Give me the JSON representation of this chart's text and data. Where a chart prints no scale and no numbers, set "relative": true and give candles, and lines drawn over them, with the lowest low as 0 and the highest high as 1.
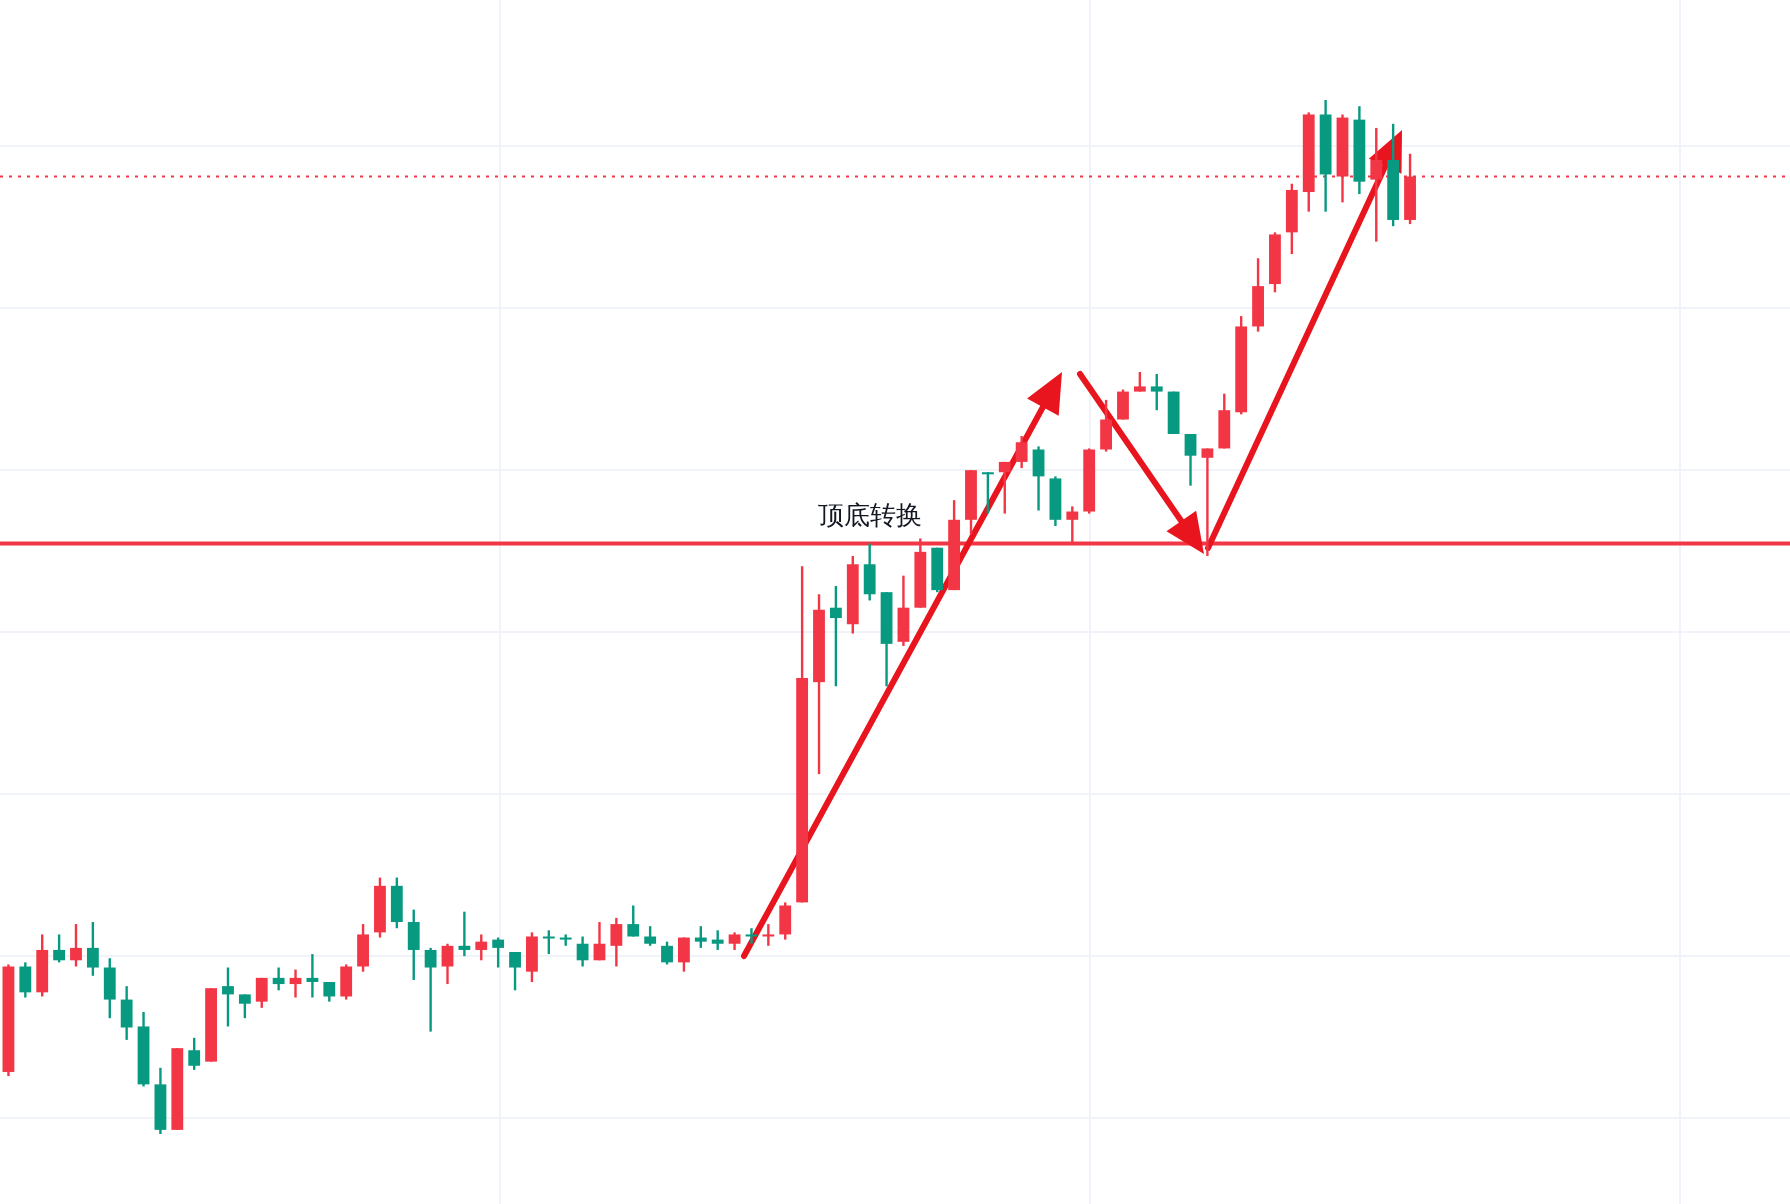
{
  "chart_data": {
    "type": "candlestick",
    "relative": true,
    "grid": true,
    "categories": [
      null,
      null,
      null,
      null,
      null,
      null,
      null,
      null,
      null,
      null,
      null,
      null,
      null,
      null,
      null,
      null,
      null,
      null,
      null,
      null,
      null,
      null,
      null,
      null,
      null,
      null,
      null,
      null,
      null,
      null,
      null,
      null,
      null,
      null,
      null,
      null,
      null,
      null,
      null,
      null,
      null,
      null,
      null,
      null,
      null,
      null,
      null,
      null,
      null,
      null,
      null,
      null,
      null,
      null,
      null,
      null,
      null,
      null,
      null,
      null,
      null,
      null,
      null,
      null,
      null,
      null,
      null,
      null,
      null,
      null,
      null,
      null,
      null,
      null,
      null,
      null,
      null,
      null,
      null,
      null,
      null,
      null,
      null,
      null
    ],
    "ohlc": [
      [
        0.06,
        0.164,
        0.056,
        0.162
      ],
      [
        0.162,
        0.166,
        0.132,
        0.137
      ],
      [
        0.137,
        0.193,
        0.133,
        0.178
      ],
      [
        0.178,
        0.193,
        0.166,
        0.168
      ],
      [
        0.168,
        0.203,
        0.162,
        0.18
      ],
      [
        0.18,
        0.205,
        0.153,
        0.161
      ],
      [
        0.161,
        0.17,
        0.112,
        0.13
      ],
      [
        0.13,
        0.143,
        0.091,
        0.103
      ],
      [
        0.104,
        0.118,
        0.046,
        0.048
      ],
      [
        0.048,
        0.064,
        0,
        0.004
      ],
      [
        0.004,
        0.083,
        0.004,
        0.083
      ],
      [
        0.081,
        0.093,
        0.062,
        0.066
      ],
      [
        0.07,
        0.141,
        0.07,
        0.141
      ],
      [
        0.143,
        0.161,
        0.104,
        0.135
      ],
      [
        0.135,
        0.135,
        0.112,
        0.126
      ],
      [
        0.128,
        0.151,
        0.122,
        0.151
      ],
      [
        0.151,
        0.161,
        0.139,
        0.145
      ],
      [
        0.145,
        0.159,
        0.132,
        0.151
      ],
      [
        0.151,
        0.174,
        0.132,
        0.147
      ],
      [
        0.147,
        0.147,
        0.128,
        0.133
      ],
      [
        0.133,
        0.164,
        0.13,
        0.162
      ],
      [
        0.162,
        0.203,
        0.157,
        0.193
      ],
      [
        0.195,
        0.248,
        0.19,
        0.24
      ],
      [
        0.24,
        0.248,
        0.199,
        0.205
      ],
      [
        0.205,
        0.217,
        0.149,
        0.178
      ],
      [
        0.178,
        0.18,
        0.099,
        0.161
      ],
      [
        0.162,
        0.184,
        0.145,
        0.182
      ],
      [
        0.182,
        0.215,
        0.172,
        0.178
      ],
      [
        0.178,
        0.193,
        0.168,
        0.186
      ],
      [
        0.188,
        0.19,
        0.161,
        0.18
      ],
      [
        0.176,
        0.176,
        0.139,
        0.161
      ],
      [
        0.157,
        0.195,
        0.147,
        0.191
      ],
      [
        0.191,
        0.197,
        0.174,
        0.19
      ],
      [
        0.19,
        0.193,
        0.182,
        0.188
      ],
      [
        0.184,
        0.191,
        0.162,
        0.168
      ],
      [
        0.168,
        0.205,
        0.168,
        0.184
      ],
      [
        0.182,
        0.209,
        0.162,
        0.203
      ],
      [
        0.203,
        0.221,
        0.191,
        0.191
      ],
      [
        0.191,
        0.201,
        0.182,
        0.184
      ],
      [
        0.182,
        0.186,
        0.164,
        0.166
      ],
      [
        0.166,
        0.19,
        0.157,
        0.19
      ],
      [
        0.19,
        0.201,
        0.18,
        0.186
      ],
      [
        0.188,
        0.197,
        0.178,
        0.184
      ],
      [
        0.184,
        0.195,
        0.178,
        0.193
      ],
      [
        0.193,
        0.199,
        0.184,
        0.191
      ],
      [
        0.191,
        0.203,
        0.182,
        0.193
      ],
      [
        0.193,
        0.224,
        0.188,
        0.221
      ],
      [
        0.224,
        0.549,
        0.224,
        0.441
      ],
      [
        0.437,
        0.522,
        0.348,
        0.507
      ],
      [
        0.509,
        0.53,
        0.433,
        0.499
      ],
      [
        0.493,
        0.559,
        0.484,
        0.551
      ],
      [
        0.551,
        0.571,
        0.516,
        0.522
      ],
      [
        0.524,
        0.524,
        0.433,
        0.474
      ],
      [
        0.476,
        0.54,
        0.472,
        0.509
      ],
      [
        0.509,
        0.576,
        0.509,
        0.563
      ],
      [
        0.567,
        0.567,
        0.524,
        0.526
      ],
      [
        0.526,
        0.613,
        0.526,
        0.594
      ],
      [
        0.594,
        0.642,
        0.58,
        0.642
      ],
      [
        0.64,
        0.64,
        0.6,
        0.638
      ],
      [
        0.64,
        0.65,
        0.6,
        0.65
      ],
      [
        0.65,
        0.675,
        0.644,
        0.669
      ],
      [
        0.662,
        0.665,
        0.603,
        0.636
      ],
      [
        0.634,
        0.636,
        0.588,
        0.594
      ],
      [
        0.594,
        0.607,
        0.571,
        0.602
      ],
      [
        0.602,
        0.663,
        0.6,
        0.662
      ],
      [
        0.662,
        0.71,
        0.66,
        0.691
      ],
      [
        0.691,
        0.72,
        0.691,
        0.718
      ],
      [
        0.718,
        0.737,
        0.718,
        0.723
      ],
      [
        0.723,
        0.735,
        0.7,
        0.718
      ],
      [
        0.718,
        0.718,
        0.677,
        0.677
      ],
      [
        0.677,
        0.677,
        0.627,
        0.656
      ],
      [
        0.654,
        0.663,
        0.559,
        0.663
      ],
      [
        0.663,
        0.716,
        0.663,
        0.7
      ],
      [
        0.698,
        0.791,
        0.696,
        0.781
      ],
      [
        0.781,
        0.847,
        0.776,
        0.82
      ],
      [
        0.822,
        0.872,
        0.814,
        0.87
      ],
      [
        0.872,
        0.919,
        0.851,
        0.913
      ],
      [
        0.911,
        0.988,
        0.892,
        0.986
      ],
      [
        0.986,
        1,
        0.892,
        0.928
      ],
      [
        0.926,
        0.986,
        0.901,
        0.983
      ],
      [
        0.981,
        0.994,
        0.909,
        0.921
      ],
      [
        0.923,
        0.973,
        0.863,
        0.942
      ],
      [
        0.942,
        0.977,
        0.878,
        0.884
      ],
      [
        0.884,
        0.948,
        0.88,
        0.926
      ]
    ],
    "colors": [
      "#f23645",
      "#089981",
      "#f23645",
      "#089981",
      "#f23645",
      "#089981",
      "#089981",
      "#089981",
      "#089981",
      "#089981",
      "#f23645",
      "#089981",
      "#f23645",
      "#089981",
      "#089981",
      "#f23645",
      "#089981",
      "#f23645",
      "#089981",
      "#089981",
      "#f23645",
      "#f23645",
      "#f23645",
      "#089981",
      "#089981",
      "#089981",
      "#f23645",
      "#089981",
      "#f23645",
      "#089981",
      "#089981",
      "#f23645",
      "#089981",
      "#089981",
      "#089981",
      "#f23645",
      "#f23645",
      "#089981",
      "#089981",
      "#089981",
      "#f23645",
      "#089981",
      "#089981",
      "#f23645",
      "#089981",
      "#f23645",
      "#f23645",
      "#f23645",
      "#f23645",
      "#089981",
      "#f23645",
      "#089981",
      "#089981",
      "#f23645",
      "#f23645",
      "#089981",
      "#f23645",
      "#f23645",
      "#089981",
      "#f23645",
      "#f23645",
      "#089981",
      "#089981",
      "#f23645",
      "#f23645",
      "#f23645",
      "#f23645",
      "#f23645",
      "#089981",
      "#089981",
      "#089981",
      "#f23645",
      "#f23645",
      "#f23645",
      "#f23645",
      "#f23645",
      "#f23645",
      "#f23645",
      "#089981",
      "#f23645",
      "#089981",
      "#f23645",
      "#089981",
      "#f23645"
    ],
    "ref_lines": [
      {
        "axis": "y",
        "value": 0.571,
        "label": "顶底转换",
        "color": "#f23645",
        "line_style": "solid"
      },
      {
        "axis": "y",
        "value": 0.926,
        "color": "#f23645",
        "line_style": "dotted"
      }
    ]
  }
}
